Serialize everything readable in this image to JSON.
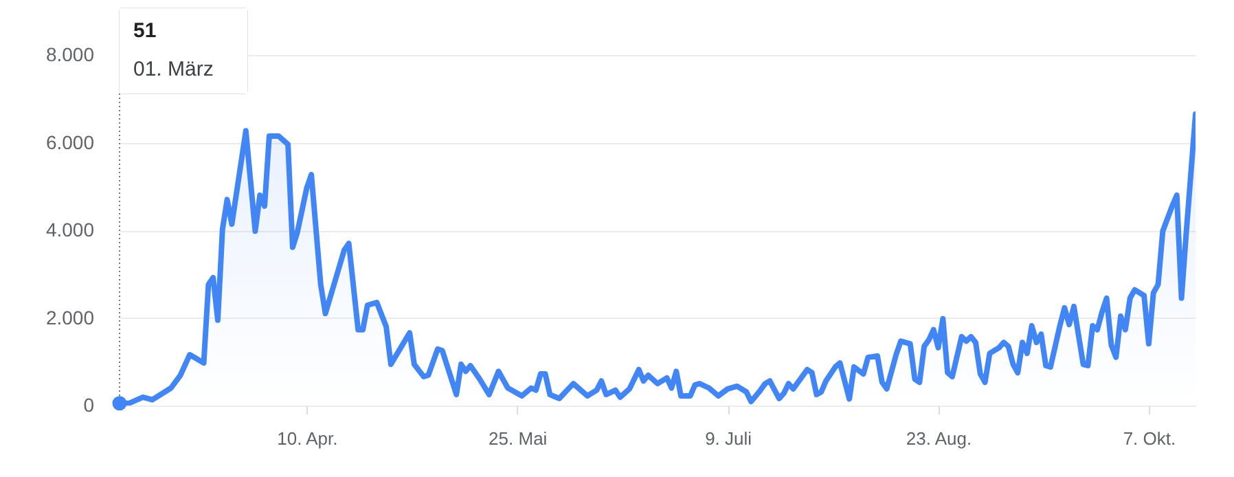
{
  "chart_data": {
    "type": "area",
    "x": [
      "--03-01",
      "--03-03",
      "--03-06",
      "--03-08",
      "--03-12",
      "--03-14",
      "--03-16",
      "--03-19",
      "--03-20",
      "--03-21",
      "--03-22",
      "--03-23",
      "--03-24",
      "--03-25",
      "--03-28",
      "--03-30",
      "--03-31",
      "--04-01",
      "--04-02",
      "--04-04",
      "--04-06",
      "--04-07",
      "--04-08",
      "--04-10",
      "--04-11",
      "--04-13",
      "--04-14",
      "--04-18",
      "--04-19",
      "--04-21",
      "--04-22",
      "--04-23",
      "--04-25",
      "--04-27",
      "--04-28",
      "--05-02",
      "--05-03",
      "--05-05",
      "--05-06",
      "--05-08",
      "--05-09",
      "--05-12",
      "--05-13",
      "--05-14",
      "--05-15",
      "--05-17",
      "--05-19",
      "--05-21",
      "--05-23",
      "--05-26",
      "--05-28",
      "--05-29",
      "--05-30",
      "--05-31",
      "--06-01",
      "--06-03",
      "--06-06",
      "--06-09",
      "--06-11",
      "--06-12",
      "--06-13",
      "--06-15",
      "--06-16",
      "--06-18",
      "--06-20",
      "--06-21",
      "--06-22",
      "--06-24",
      "--06-26",
      "--06-27",
      "--06-28",
      "--06-29",
      "--07-01",
      "--07-02",
      "--07-03",
      "--07-05",
      "--07-07",
      "--07-09",
      "--07-11",
      "--07-13",
      "--07-14",
      "--07-16",
      "--07-17",
      "--07-18",
      "--07-20",
      "--07-21",
      "--07-22",
      "--07-23",
      "--07-26",
      "--07-27",
      "--07-28",
      "--07-29",
      "--07-30",
      "--08-01",
      "--08-02",
      "--08-04",
      "--08-05",
      "--08-07",
      "--08-08",
      "--08-10",
      "--08-11",
      "--08-12",
      "--08-14",
      "--08-15",
      "--08-17",
      "--08-18",
      "--08-19",
      "--08-20",
      "--08-21",
      "--08-22",
      "--08-23",
      "--08-24",
      "--08-25",
      "--08-26",
      "--08-28",
      "--08-29",
      "--08-30",
      "--08-31",
      "--09-01",
      "--09-02",
      "--09-03",
      "--09-05",
      "--09-06",
      "--09-07",
      "--09-08",
      "--09-09",
      "--09-10",
      "--09-11",
      "--09-12",
      "--09-13",
      "--09-14",
      "--09-15",
      "--09-16",
      "--09-18",
      "--09-19",
      "--09-20",
      "--09-21",
      "--09-23",
      "--09-24",
      "--09-25",
      "--09-26",
      "--09-27",
      "--09-28",
      "--09-29",
      "--09-30",
      "--10-01",
      "--10-02",
      "--10-03",
      "--10-04",
      "--10-06",
      "--10-07",
      "--10-08",
      "--10-09",
      "--10-10",
      "--10-12",
      "--10-13",
      "--10-14",
      "--10-15",
      "--10-17"
    ],
    "series": [
      {
        "color": "#4285f4",
        "values": [
          51,
          50,
          190,
          130,
          400,
          690,
          1160,
          970,
          2760,
          2920,
          1950,
          4020,
          4700,
          4140,
          6270,
          3980,
          4800,
          4550,
          6150,
          6150,
          5960,
          3610,
          3950,
          4960,
          5270,
          2760,
          2100,
          3540,
          3700,
          1730,
          1730,
          2290,
          2350,
          1800,
          940,
          1660,
          940,
          660,
          690,
          1290,
          1250,
          250,
          940,
          780,
          910,
          600,
          250,
          780,
          400,
          220,
          400,
          350,
          720,
          720,
          250,
          160,
          500,
          220,
          350,
          560,
          250,
          350,
          190,
          380,
          820,
          560,
          690,
          500,
          630,
          400,
          780,
          220,
          220,
          470,
          500,
          400,
          220,
          380,
          440,
          310,
          90,
          350,
          500,
          560,
          160,
          280,
          500,
          380,
          820,
          750,
          250,
          310,
          560,
          880,
          970,
          150,
          880,
          720,
          1100,
          1130,
          530,
          380,
          1160,
          1470,
          1410,
          600,
          530,
          1350,
          1500,
          1730,
          1320,
          1980,
          750,
          660,
          1570,
          1470,
          1570,
          1440,
          720,
          530,
          1190,
          1320,
          1440,
          1350,
          940,
          750,
          1440,
          1190,
          1820,
          1440,
          1630,
          910,
          880,
          1820,
          2230,
          1850,
          2260,
          940,
          910,
          1820,
          1730,
          2130,
          2450,
          1380,
          1100,
          2040,
          1730,
          2450,
          2640,
          2510,
          1410,
          2570,
          2760,
          3980,
          4550,
          4800,
          2450,
          3920,
          6650
        ]
      }
    ],
    "xlim": [
      "--03-01",
      "--10-17"
    ],
    "xticks": [
      {
        "value": "--04-10",
        "label": "10. Apr."
      },
      {
        "value": "--05-25",
        "label": "25. Mai"
      },
      {
        "value": "--07-09",
        "label": "9. Juli"
      },
      {
        "value": "--08-23",
        "label": "23. Aug."
      },
      {
        "value": "--10-07",
        "label": "7. Okt."
      }
    ],
    "ylim": [
      0,
      8000
    ],
    "yticks": [
      0,
      {
        "value": 2000,
        "label": "2.000"
      },
      {
        "value": 4000,
        "label": "4.000"
      },
      {
        "value": 6000,
        "label": "6.000"
      },
      {
        "value": 8000,
        "label": "8.000"
      }
    ],
    "grid": "y",
    "annotations": [
      "51",
      "01. März"
    ]
  }
}
